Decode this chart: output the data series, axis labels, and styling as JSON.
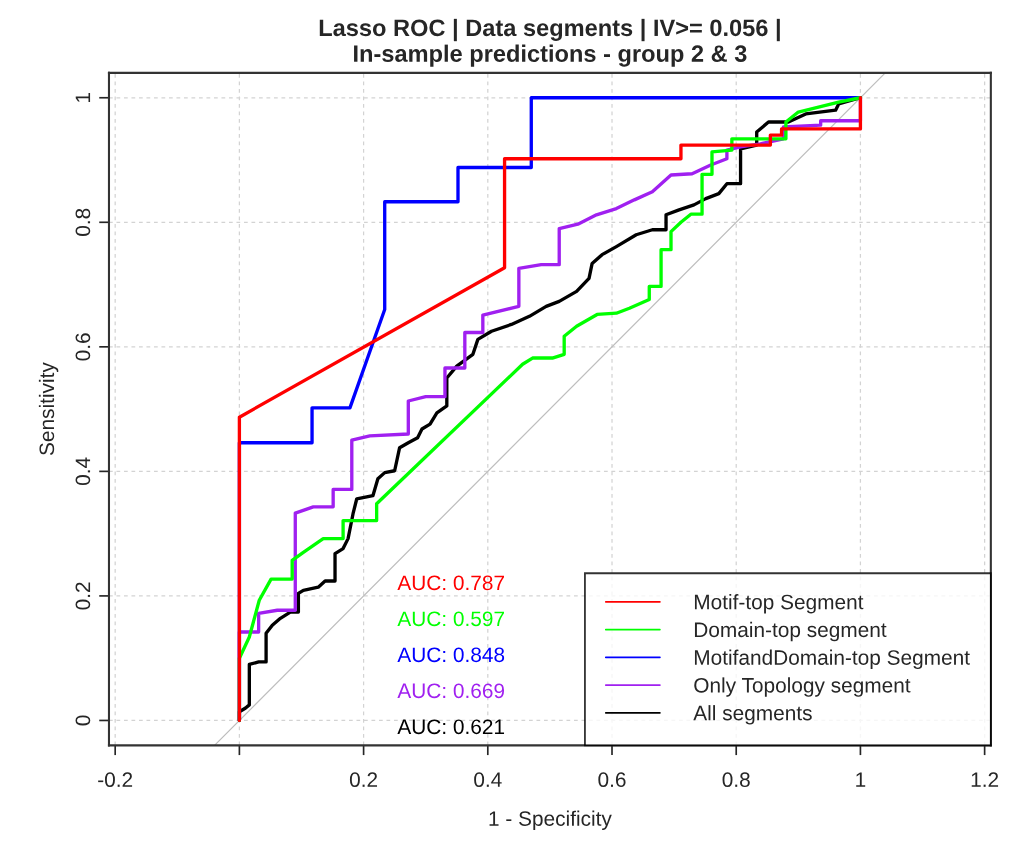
{
  "chart_data": {
    "type": "line",
    "title": "Lasso ROC | Data segments | IV>= 0.056 |\nIn-sample predictions - group 2 & 3",
    "xlabel": "1 - Specificity",
    "ylabel": "Sensitivity",
    "xlim": [
      -0.21,
      1.21
    ],
    "ylim": [
      -0.04,
      1.04
    ],
    "xticks": [
      -0.2,
      {
        "value": 0,
        "label": null
      },
      0.2,
      0.4,
      0.6,
      0.8,
      1,
      1.2
    ],
    "yticks": [
      0,
      0.2,
      0.4,
      0.6,
      0.8,
      1
    ],
    "grid": true,
    "legend": "bottom right",
    "marker": "none",
    "line_style": "solid",
    "annotations": [
      "AUC: 0.787",
      "AUC: 0.597",
      "AUC: 0.848",
      "AUC: 0.669",
      "AUC: 0.621"
    ],
    "series": [
      {
        "name": "Motif-top Segment",
        "color": "#ff0000",
        "x": [
          0,
          0,
          0.427,
          0.427,
          0.711,
          0.711,
          0.855,
          0.855,
          0.873,
          0.873,
          1,
          1
        ],
        "values": [
          0,
          0.487,
          0.727,
          0.902,
          0.902,
          0.924,
          0.924,
          0.94,
          0.94,
          0.95,
          0.95,
          1
        ]
      },
      {
        "name": "Domain-top segment",
        "color": "#00ff00",
        "x": [
          0,
          0,
          0.016,
          0.032,
          0.051,
          0.085,
          0.085,
          0.103,
          0.135,
          0.167,
          0.167,
          0.221,
          0.221,
          0.456,
          0.472,
          0.504,
          0.523,
          0.523,
          0.543,
          0.576,
          0.607,
          0.628,
          0.66,
          0.66,
          0.679,
          0.679,
          0.695,
          0.695,
          0.711,
          0.727,
          0.745,
          0.745,
          0.761,
          0.761,
          0.793,
          0.793,
          0.88,
          0.88,
          0.9,
          0.965,
          1
        ],
        "values": [
          0,
          0.1,
          0.134,
          0.193,
          0.227,
          0.227,
          0.257,
          0.27,
          0.292,
          0.292,
          0.321,
          0.321,
          0.348,
          0.572,
          0.582,
          0.582,
          0.588,
          0.617,
          0.633,
          0.652,
          0.654,
          0.662,
          0.676,
          0.697,
          0.697,
          0.756,
          0.756,
          0.785,
          0.8,
          0.813,
          0.813,
          0.877,
          0.877,
          0.913,
          0.916,
          0.934,
          0.934,
          0.961,
          0.977,
          0.993,
          1
        ]
      },
      {
        "name": "MotifandDomain-top Segment",
        "color": "#0000ff",
        "x": [
          0,
          0,
          0.117,
          0.117,
          0.178,
          0.234,
          0.234,
          0.352,
          0.352,
          0.47,
          0.47,
          1
        ],
        "values": [
          0,
          0.446,
          0.446,
          0.502,
          0.502,
          0.66,
          0.833,
          0.833,
          0.888,
          0.888,
          1,
          1
        ]
      },
      {
        "name": "Only Topology segment",
        "color": "#a020f0",
        "x": [
          0,
          0,
          0.031,
          0.031,
          0.061,
          0.09,
          0.09,
          0.119,
          0.151,
          0.151,
          0.181,
          0.181,
          0.21,
          0.272,
          0.272,
          0.3,
          0.331,
          0.331,
          0.363,
          0.363,
          0.392,
          0.392,
          0.45,
          0.45,
          0.486,
          0.515,
          0.515,
          0.545,
          0.575,
          0.607,
          0.636,
          0.665,
          0.695,
          0.729,
          0.759,
          0.785,
          0.785,
          0.807,
          0.839,
          0.876,
          0.876,
          0.936,
          0.936,
          1,
          1
        ],
        "values": [
          0,
          0.142,
          0.142,
          0.172,
          0.177,
          0.177,
          0.333,
          0.343,
          0.343,
          0.371,
          0.371,
          0.45,
          0.457,
          0.46,
          0.513,
          0.52,
          0.52,
          0.566,
          0.566,
          0.623,
          0.623,
          0.651,
          0.665,
          0.726,
          0.732,
          0.732,
          0.79,
          0.797,
          0.812,
          0.822,
          0.836,
          0.849,
          0.876,
          0.878,
          0.892,
          0.902,
          0.916,
          0.921,
          0.926,
          0.934,
          0.953,
          0.956,
          0.963,
          0.963,
          1
        ]
      },
      {
        "name": "All segments",
        "color": "#000000",
        "x": [
          0,
          0,
          0.01,
          0.016,
          0.016,
          0.031,
          0.043,
          0.043,
          0.053,
          0.066,
          0.082,
          0.095,
          0.095,
          0.103,
          0.127,
          0.138,
          0.154,
          0.154,
          0.167,
          0.175,
          0.183,
          0.189,
          0.215,
          0.223,
          0.234,
          0.25,
          0.258,
          0.272,
          0.287,
          0.294,
          0.307,
          0.318,
          0.334,
          0.334,
          0.35,
          0.376,
          0.384,
          0.406,
          0.438,
          0.467,
          0.494,
          0.515,
          0.543,
          0.563,
          0.568,
          0.584,
          0.607,
          0.639,
          0.665,
          0.687,
          0.687,
          0.708,
          0.732,
          0.751,
          0.772,
          0.785,
          0.807,
          0.807,
          0.833,
          0.833,
          0.852,
          0.884,
          0.912,
          0.96,
          0.965,
          1
        ],
        "values": [
          0,
          0.014,
          0.02,
          0.025,
          0.09,
          0.094,
          0.094,
          0.14,
          0.153,
          0.164,
          0.174,
          0.174,
          0.204,
          0.209,
          0.214,
          0.224,
          0.224,
          0.268,
          0.276,
          0.292,
          0.332,
          0.356,
          0.361,
          0.388,
          0.398,
          0.401,
          0.438,
          0.446,
          0.454,
          0.468,
          0.476,
          0.494,
          0.505,
          0.55,
          0.569,
          0.588,
          0.612,
          0.625,
          0.636,
          0.649,
          0.665,
          0.673,
          0.689,
          0.71,
          0.734,
          0.748,
          0.761,
          0.78,
          0.788,
          0.788,
          0.812,
          0.82,
          0.828,
          0.838,
          0.846,
          0.862,
          0.862,
          0.918,
          0.924,
          0.945,
          0.961,
          0.961,
          0.974,
          0.98,
          0.99,
          1
        ]
      },
      {
        "color": "#bebebe",
        "x": [
          -0.04,
          1.04
        ],
        "values": [
          -0.04,
          1.04
        ]
      }
    ]
  }
}
